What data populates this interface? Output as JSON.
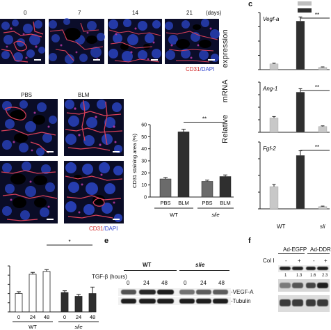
{
  "panel_a": {
    "time_labels": [
      "0",
      "7",
      "14",
      "21"
    ],
    "time_unit": "(days)",
    "stain_label_red": "CD31",
    "stain_label_sep": "/",
    "stain_label_blue": "DAPI"
  },
  "panel_b": {
    "col_labels": [
      "PBS",
      "BLM"
    ],
    "stain_label_red": "CD31",
    "stain_label_sep": "/",
    "stain_label_blue": "DAPI"
  },
  "chart_b": {
    "type": "bar",
    "ylabel": "CD31 staining area (%)",
    "yticks": [
      "0",
      "10",
      "20",
      "30",
      "40",
      "50",
      "60"
    ],
    "categories": [
      "PBS",
      "BLM",
      "PBS",
      "BLM"
    ],
    "groups": [
      "WT",
      "slie"
    ],
    "values": [
      15,
      54,
      13,
      17
    ],
    "errors": [
      1.2,
      2.2,
      1.0,
      1.3
    ],
    "colors": [
      "#6b6b6b",
      "#2f2f2f",
      "#6b6b6b",
      "#2f2f2f"
    ],
    "ylim": [
      0,
      60
    ],
    "significance": "**"
  },
  "panel_c": {
    "letter": "c",
    "ylabel_parts": [
      "Relative",
      "mRNA",
      "expression"
    ],
    "genes": [
      "Vegf-a",
      "Ang-1",
      "Fgf-2"
    ],
    "significance": [
      "**",
      "**",
      "**"
    ],
    "groups": [
      "WT",
      "sli"
    ],
    "legend_colors": [
      "#bfbfbf",
      "#2f2f2f"
    ]
  },
  "chart_c": [
    {
      "gene": "Vegf-a",
      "type": "bar",
      "values": [
        1.0,
        8.5,
        0.4
      ],
      "colors": [
        "#c8c8c8",
        "#2f2f2f",
        "#c8c8c8"
      ]
    },
    {
      "gene": "Ang-1",
      "type": "bar",
      "values": [
        1.0,
        2.8,
        0.4
      ],
      "colors": [
        "#c8c8c8",
        "#2f2f2f",
        "#c8c8c8"
      ]
    },
    {
      "gene": "Fgf-2",
      "type": "bar",
      "values": [
        1.0,
        2.4,
        0.1
      ],
      "colors": [
        "#c8c8c8",
        "#2f2f2f",
        "#c8c8c8"
      ]
    }
  ],
  "chart_d": {
    "type": "bar",
    "categories": [
      "0",
      "24",
      "48",
      "0",
      "24",
      "48"
    ],
    "groups": [
      "WT",
      "slie"
    ],
    "values": [
      1.0,
      2.05,
      2.2,
      1.05,
      0.85,
      1.0
    ],
    "colors": [
      "#ffffff",
      "#ffffff",
      "#ffffff",
      "#2f2f2f",
      "#2f2f2f",
      "#2f2f2f"
    ],
    "significance": "*"
  },
  "panel_e": {
    "letter": "e",
    "groups": [
      "WT",
      "slie"
    ],
    "treatment_label": "TGF-β (hours)",
    "lanes": [
      "0",
      "24",
      "48",
      "0",
      "24",
      "48"
    ],
    "rows": [
      "-VEGF-A",
      "-Tubulin"
    ]
  },
  "panel_f": {
    "letter": "f",
    "groups": [
      "Ad-EGFP",
      "Ad-DDR"
    ],
    "treatment_label": "Col I",
    "treatment_values": [
      "-",
      "+"
    ],
    "quant_values": [
      "1",
      "1.3",
      "1.6",
      "2.3"
    ]
  }
}
